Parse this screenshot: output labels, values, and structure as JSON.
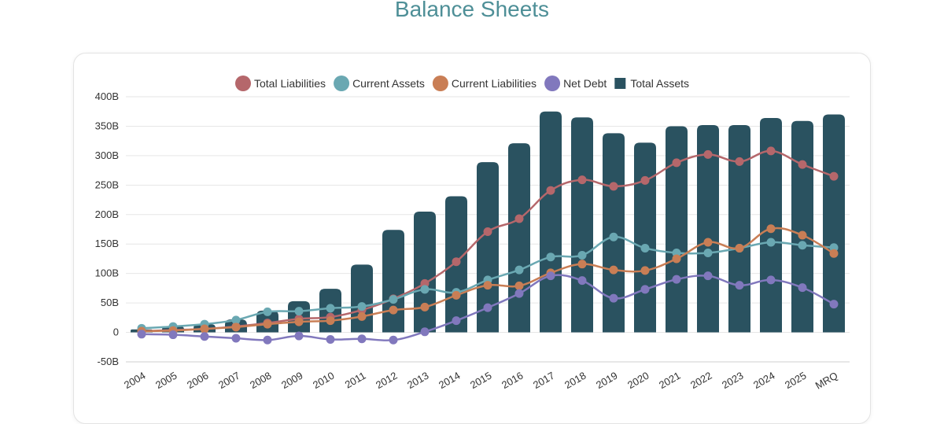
{
  "page": {
    "title": "Balance Sheets"
  },
  "chart_data": {
    "type": "bar",
    "categories": [
      "2004",
      "2005",
      "2006",
      "2007",
      "2008",
      "2009",
      "2010",
      "2011",
      "2012",
      "2013",
      "2014",
      "2015",
      "2016",
      "2017",
      "2018",
      "2019",
      "2020",
      "2021",
      "2022",
      "2023",
      "2024",
      "2025",
      "MRQ"
    ],
    "ylim": [
      -50,
      400
    ],
    "yticks": [
      -50,
      0,
      50,
      100,
      150,
      200,
      250,
      300,
      350,
      400
    ],
    "ytick_labels": [
      "-50B",
      "0",
      "50B",
      "100B",
      "150B",
      "200B",
      "250B",
      "300B",
      "350B",
      "400B"
    ],
    "grid": true,
    "legend_position": "top",
    "series": [
      {
        "name": "Total Liabilities",
        "type": "line",
        "color": "#b5676b",
        "values": [
          2,
          4,
          6,
          10,
          16,
          23,
          26,
          38,
          57,
          83,
          120,
          171,
          193,
          241,
          259,
          248,
          258,
          288,
          302,
          290,
          308,
          285,
          265
        ]
      },
      {
        "name": "Current Assets",
        "type": "line",
        "color": "#6aa8b2",
        "values": [
          7,
          10,
          14,
          21,
          35,
          36,
          41,
          44,
          56,
          73,
          68,
          89,
          106,
          128,
          131,
          162,
          143,
          135,
          135,
          143,
          153,
          148,
          144
        ]
      },
      {
        "name": "Current Liabilities",
        "type": "line",
        "color": "#c97e55",
        "values": [
          2,
          3,
          6,
          9,
          14,
          18,
          20,
          27,
          38,
          43,
          63,
          80,
          79,
          101,
          116,
          106,
          105,
          125,
          153,
          143,
          176,
          165,
          134
        ]
      },
      {
        "name": "Net Debt",
        "type": "line",
        "color": "#8178bd",
        "values": [
          -3,
          -4,
          -7,
          -10,
          -13,
          -6,
          -12,
          -11,
          -13,
          1,
          20,
          42,
          66,
          96,
          88,
          58,
          73,
          90,
          96,
          80,
          89,
          76,
          48
        ]
      },
      {
        "name": "Total Assets",
        "type": "bar",
        "color": "#2a5260",
        "values": [
          5,
          10,
          14,
          22,
          37,
          53,
          74,
          115,
          174,
          205,
          231,
          289,
          321,
          375,
          365,
          338,
          322,
          350,
          352,
          352,
          364,
          359,
          370
        ]
      }
    ]
  }
}
